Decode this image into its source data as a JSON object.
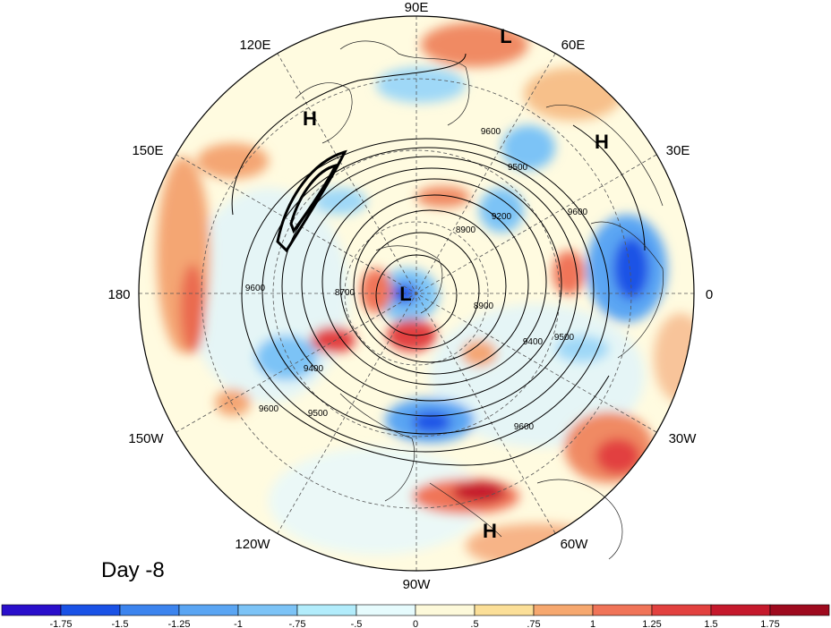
{
  "map": {
    "projection": "polar stereographic (northern hemisphere)",
    "longitude_labels": [
      "90E",
      "60E",
      "30E",
      "0",
      "30W",
      "60W",
      "90W",
      "120W",
      "150W",
      "180",
      "150E",
      "120E"
    ],
    "pressure_centers": [
      {
        "name": "pressure-center-low-north",
        "label": "L"
      },
      {
        "name": "pressure-center-high-northwest",
        "label": "H"
      },
      {
        "name": "pressure-center-high-northeast",
        "label": "H"
      },
      {
        "name": "pressure-center-low-pole",
        "label": "L"
      },
      {
        "name": "pressure-center-high-south",
        "label": "H"
      }
    ],
    "contour_labels": [
      "9600",
      "9500",
      "9200",
      "9600",
      "8700",
      "8900",
      "8900",
      "9400",
      "9500",
      "9600",
      "9400",
      "9500",
      "9600",
      "9600"
    ],
    "day_label": "Day -8"
  },
  "colorbar": {
    "tick_labels": [
      "-1.75",
      "-1.5",
      "-1.25",
      "-1",
      "-.75",
      "-.5",
      "0",
      ".5",
      ".75",
      "1",
      "1.25",
      "1.5",
      "1.75"
    ],
    "colors": [
      "#2a0fcb",
      "#1a52e6",
      "#3c84ee",
      "#5aa5f3",
      "#7cc3f6",
      "#b2ecfb",
      "#e6fbfd",
      "#fdf9da",
      "#fbdf98",
      "#f6a86f",
      "#f07458",
      "#e2413f",
      "#c5192c",
      "#9e0a1e"
    ]
  },
  "colors": {
    "ocean_background": "#fffde8",
    "map_border": "#000000",
    "grid": "#444444"
  }
}
